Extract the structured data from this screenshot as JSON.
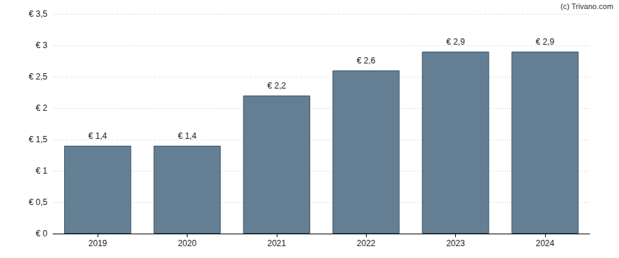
{
  "chart_data": {
    "type": "bar",
    "categories": [
      "2019",
      "2020",
      "2021",
      "2022",
      "2023",
      "2024"
    ],
    "values": [
      1.4,
      1.4,
      2.2,
      2.6,
      2.9,
      2.9
    ],
    "value_labels": [
      "€ 1,4",
      "€ 1,4",
      "€ 2,2",
      "€ 2,6",
      "€ 2,9",
      "€ 2,9"
    ],
    "color": "#647f94",
    "ylim": [
      0,
      3.5
    ],
    "yticks": [
      {
        "value": 0,
        "label": "€ 0"
      },
      {
        "value": 0.5,
        "label": "€ 0,5"
      },
      {
        "value": 1,
        "label": "€ 1"
      },
      {
        "value": 1.5,
        "label": "€ 1,5"
      },
      {
        "value": 2,
        "label": "€ 2"
      },
      {
        "value": 2.5,
        "label": "€ 2,5"
      },
      {
        "value": 3,
        "label": "€ 3"
      },
      {
        "value": 3.5,
        "label": "€ 3,5"
      }
    ],
    "grid": true,
    "data_labels": true,
    "annotations": [
      "(c) Trivano.com"
    ]
  }
}
